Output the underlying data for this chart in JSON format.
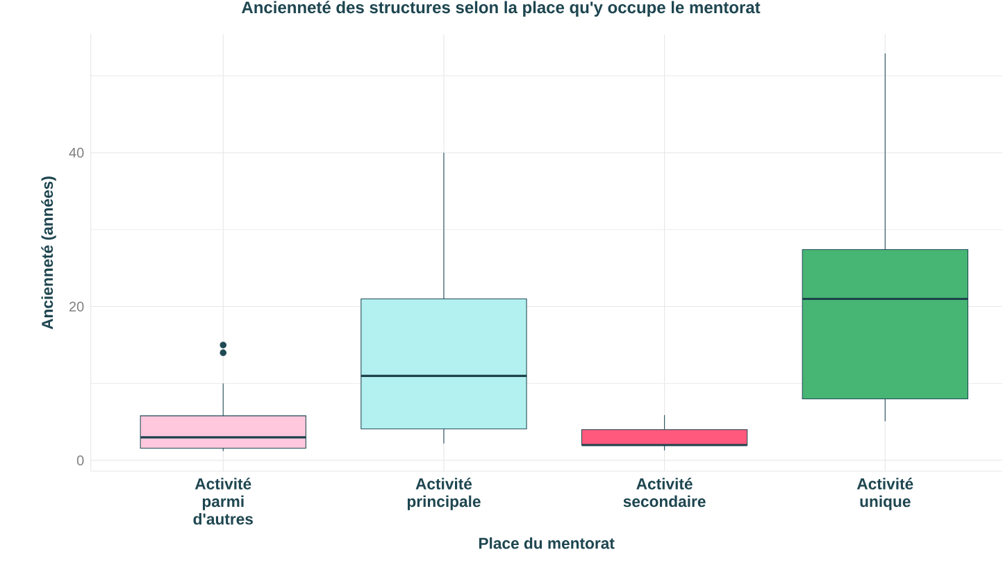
{
  "chart_data": {
    "type": "box",
    "title": "Ancienneté des structures selon la place qu'y occupe le mentorat",
    "xlabel": "Place du mentorat",
    "ylabel": "Ancienneté (années)",
    "categories": [
      "Activité parmi d'autres",
      "Activité principale",
      "Activité secondaire",
      "Activité unique"
    ],
    "colors": [
      "#ffc8dc",
      "#b3f0f0",
      "#ff5a7d",
      "#47b574"
    ],
    "boxes": [
      {
        "low": 1.2,
        "q1": 1.6,
        "median": 3,
        "q3": 5.8,
        "high": 10,
        "outliers": [
          15,
          14
        ]
      },
      {
        "low": 2.2,
        "q1": 4.1,
        "median": 11,
        "q3": 21,
        "high": 40
      },
      {
        "low": 1.3,
        "q1": 2,
        "median": 2,
        "q3": 4,
        "high": 5.9
      },
      {
        "low": 5.1,
        "q1": 8,
        "median": 21,
        "q3": 27.4,
        "high": 52.9
      }
    ],
    "ylim": [
      -1.4,
      55.4
    ],
    "yticks": [
      0,
      {
        "value": 10,
        "label": null
      },
      20,
      {
        "value": 30,
        "label": null
      },
      40,
      {
        "value": 50,
        "label": null
      }
    ],
    "grid": true
  }
}
